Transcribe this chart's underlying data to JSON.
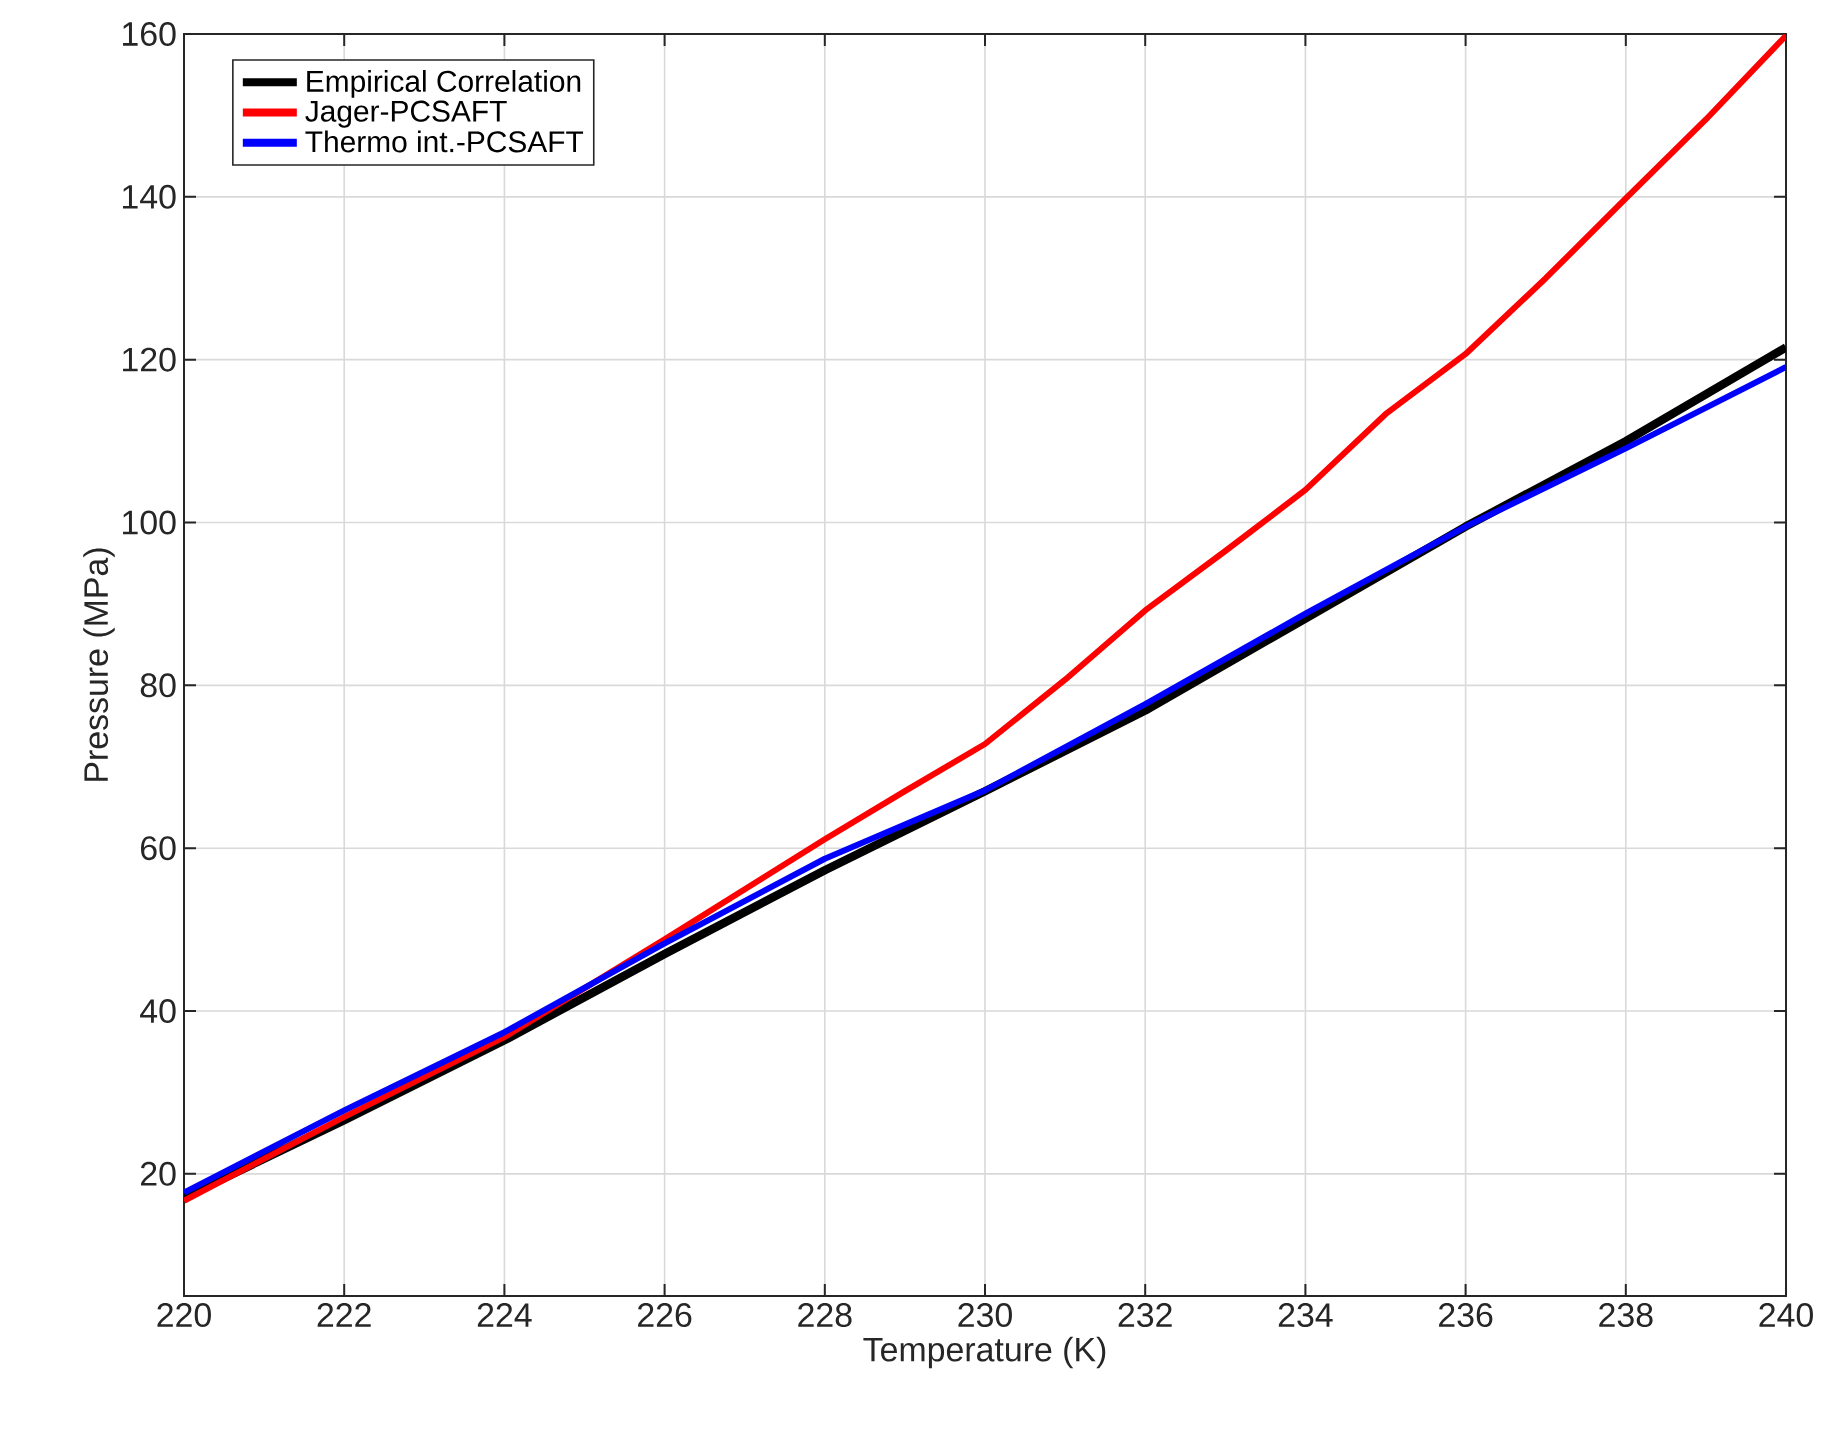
{
  "chart_data": {
    "type": "line",
    "xlabel": "Temperature (K)",
    "ylabel": "Pressure (MPa)",
    "xlim": [
      220,
      240
    ],
    "ylim": [
      5,
      160
    ],
    "xticks": [
      220,
      222,
      224,
      226,
      228,
      230,
      232,
      234,
      236,
      238,
      240
    ],
    "yticks": [
      20,
      40,
      60,
      80,
      100,
      120,
      140,
      160
    ],
    "grid": true,
    "legend": "top left",
    "marker": "none",
    "line_style": "solid",
    "x": [
      220,
      222,
      224,
      226,
      228,
      230,
      232,
      234,
      236,
      238,
      240
    ],
    "series": [
      {
        "name": "Empirical Correlation",
        "color": "#000000",
        "values": [
          17.1,
          26.6,
          36.4,
          47.0,
          57.3,
          67.0,
          76.9,
          88.2,
          99.5,
          110.0,
          121.5
        ]
      },
      {
        "name": "Jager-PCSAFT",
        "color": "#ff0000",
        "x": [
          220,
          222,
          224,
          226,
          228,
          229,
          230,
          231,
          232,
          233,
          234,
          235,
          236,
          237,
          238,
          239,
          240
        ],
        "values": [
          16.7,
          27.0,
          36.8,
          48.8,
          61.1,
          67.0,
          72.8,
          80.7,
          89.2,
          96.5,
          104.0,
          113.3,
          120.7,
          130.0,
          139.8,
          149.5,
          159.8
        ]
      },
      {
        "name": "Thermo int.-PCSAFT",
        "color": "#0000ff",
        "values": [
          17.7,
          27.8,
          37.4,
          48.3,
          58.7,
          67.1,
          77.7,
          88.8,
          99.5,
          109.1,
          119.1
        ]
      }
    ]
  }
}
